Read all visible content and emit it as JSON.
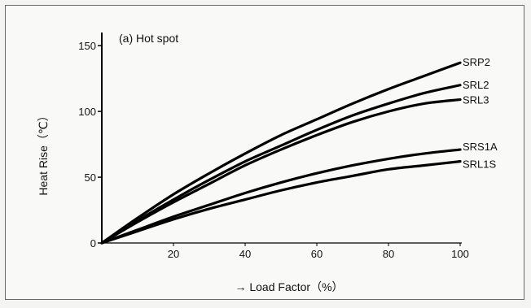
{
  "chart_data": {
    "type": "line",
    "title": "(a) Hot spot",
    "xlabel": "→ Load Factor（%）",
    "ylabel": "Heat Rise（℃）",
    "xlim": [
      0,
      100
    ],
    "ylim": [
      0,
      160
    ],
    "x_ticks": [
      0,
      20,
      40,
      60,
      80,
      100
    ],
    "x_tick_labels": [
      "",
      "20",
      "40",
      "60",
      "80",
      "100"
    ],
    "y_ticks": [
      0,
      50,
      100,
      150
    ],
    "y_tick_labels": [
      "0",
      "50",
      "100",
      "150"
    ],
    "grid": false,
    "legend": "labels at line ends (right)",
    "x": [
      0,
      10,
      20,
      30,
      40,
      50,
      60,
      70,
      80,
      90,
      100
    ],
    "series": [
      {
        "name": "SRP2",
        "values": [
          0,
          19,
          37,
          53,
          68,
          82,
          94,
          106,
          117,
          127,
          137
        ]
      },
      {
        "name": "SRL2",
        "values": [
          0,
          17,
          33,
          48,
          62,
          74,
          86,
          97,
          106,
          114,
          120
        ]
      },
      {
        "name": "SRL3",
        "values": [
          0,
          16,
          31,
          45,
          59,
          71,
          82,
          92,
          100,
          106,
          109
        ]
      },
      {
        "name": "SRS1A",
        "values": [
          0,
          10,
          20,
          29,
          38,
          46,
          53,
          59,
          64,
          68,
          71
        ]
      },
      {
        "name": "SRL1S",
        "values": [
          0,
          9,
          18,
          26,
          33,
          40,
          46,
          51,
          56,
          59,
          62
        ]
      }
    ]
  }
}
